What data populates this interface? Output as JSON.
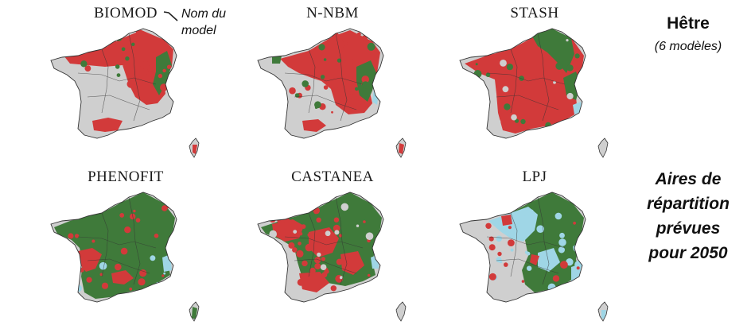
{
  "maps": [
    {
      "id": "biomod",
      "title": "BIOMOD",
      "dominant": "red"
    },
    {
      "id": "nnbm",
      "title": "N-NBM",
      "dominant": "red"
    },
    {
      "id": "stash",
      "title": "STASH",
      "dominant": "red"
    },
    {
      "id": "phenofit",
      "title": "PHENOFIT",
      "dominant": "green"
    },
    {
      "id": "castanea",
      "title": "CASTANEA",
      "dominant": "mixed"
    },
    {
      "id": "lpj",
      "title": "LPJ",
      "dominant": "green"
    }
  ],
  "annotation": {
    "line1": "Nom du",
    "line2": "model"
  },
  "species": {
    "name": "Hêtre",
    "models": "(6 modèles)"
  },
  "caption": {
    "line1": "Aires de",
    "line2": "répartition",
    "line3": "prévues",
    "line4": "pour 2050"
  },
  "colors": {
    "grey": "#cfcfcf",
    "red": "#d23a3a",
    "green": "#3f7a3a",
    "cyan": "#9fd6e6",
    "border": "#333333"
  }
}
